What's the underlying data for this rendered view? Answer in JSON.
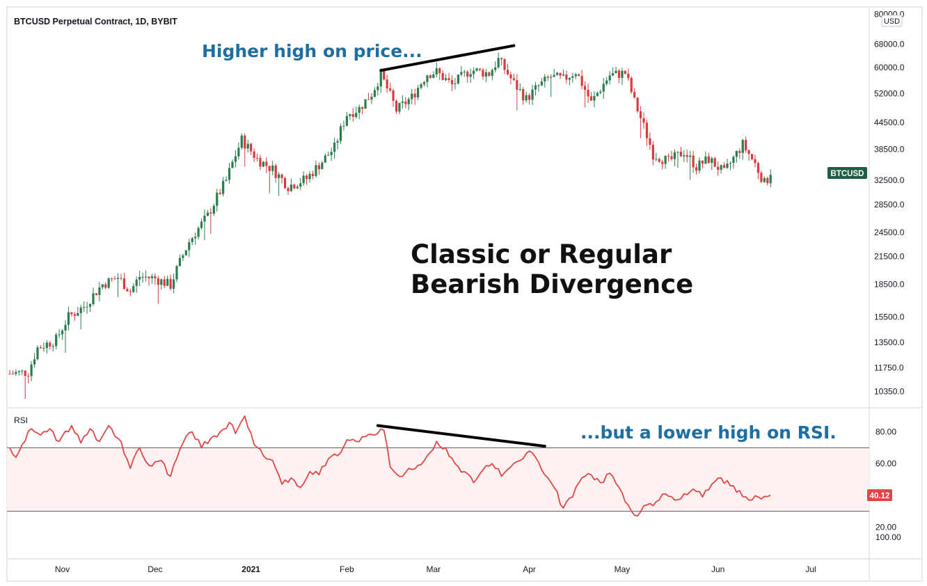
{
  "chart_data": [
    {
      "type": "candlestick",
      "title": "BTCUSD Perpetual Contract, 1D, BYBIT",
      "symbol": "BTCUSD",
      "unit": "USD",
      "scale": "log",
      "ylim": [
        9500,
        82000
      ],
      "ytick_labels": [
        "80000.0",
        "68000.0",
        "60000.0",
        "52000.0",
        "44500.0",
        "38500.0",
        "32500.0",
        "28500.0",
        "24500.0",
        "21500.0",
        "18500.0",
        "15500.0",
        "13500.0",
        "11750.0",
        "10350.0"
      ],
      "ytick_values": [
        80000,
        68000,
        60000,
        52000,
        44500,
        38500,
        32500,
        28500,
        24500,
        21500,
        18500,
        15500,
        13500,
        11750,
        10350
      ],
      "x_labels": [
        "Nov",
        "Dec",
        "2021",
        "Feb",
        "Mar",
        "Apr",
        "May",
        "Jun",
        "Jul"
      ],
      "x_label_days": [
        5,
        35,
        66,
        97,
        125,
        156,
        186,
        217,
        247
      ],
      "price_path": [
        {
          "day": -12,
          "close": 11400
        },
        {
          "day": -6,
          "close": 11500
        },
        {
          "day": -3,
          "close": 13100
        },
        {
          "day": 3,
          "close": 13700
        },
        {
          "day": 7,
          "close": 15500
        },
        {
          "day": 12,
          "close": 16400
        },
        {
          "day": 18,
          "close": 18500
        },
        {
          "day": 23,
          "close": 19200
        },
        {
          "day": 27,
          "close": 17800
        },
        {
          "day": 30,
          "close": 19300
        },
        {
          "day": 35,
          "close": 19100
        },
        {
          "day": 40,
          "close": 18400
        },
        {
          "day": 46,
          "close": 23300
        },
        {
          "day": 52,
          "close": 26800
        },
        {
          "day": 58,
          "close": 32500
        },
        {
          "day": 63,
          "close": 40500
        },
        {
          "day": 68,
          "close": 36500
        },
        {
          "day": 73,
          "close": 34500
        },
        {
          "day": 78,
          "close": 31500
        },
        {
          "day": 84,
          "close": 32800
        },
        {
          "day": 89,
          "close": 36000
        },
        {
          "day": 93,
          "close": 38800
        },
        {
          "day": 97,
          "close": 46500
        },
        {
          "day": 101,
          "close": 48000
        },
        {
          "day": 105,
          "close": 52000
        },
        {
          "day": 108,
          "close": 57500
        },
        {
          "day": 113,
          "close": 47500
        },
        {
          "day": 118,
          "close": 51000
        },
        {
          "day": 123,
          "close": 58000
        },
        {
          "day": 126,
          "close": 58500
        },
        {
          "day": 131,
          "close": 54500
        },
        {
          "day": 137,
          "close": 59200
        },
        {
          "day": 143,
          "close": 58000
        },
        {
          "day": 146,
          "close": 62500
        },
        {
          "day": 151,
          "close": 55000
        },
        {
          "day": 155,
          "close": 50500
        },
        {
          "day": 159,
          "close": 54200
        },
        {
          "day": 163,
          "close": 57000
        },
        {
          "day": 167,
          "close": 56200
        },
        {
          "day": 171,
          "close": 58700
        },
        {
          "day": 176,
          "close": 49500
        },
        {
          "day": 182,
          "close": 57500
        },
        {
          "day": 187,
          "close": 58200
        },
        {
          "day": 190,
          "close": 49800
        },
        {
          "day": 193,
          "close": 43500
        },
        {
          "day": 196,
          "close": 37500
        },
        {
          "day": 201,
          "close": 36000
        },
        {
          "day": 206,
          "close": 38000
        },
        {
          "day": 210,
          "close": 35000
        },
        {
          "day": 214,
          "close": 36500
        },
        {
          "day": 219,
          "close": 33800
        },
        {
          "day": 225,
          "close": 39500
        },
        {
          "day": 229,
          "close": 35500
        },
        {
          "day": 232,
          "close": 32000
        },
        {
          "day": 234,
          "close": 33500
        }
      ]
    },
    {
      "type": "line",
      "title": "RSI",
      "ylim": [
        0,
        100
      ],
      "ytick_labels": [
        "80.00",
        "60.00",
        "20.00",
        "100.00"
      ],
      "ytick_values": [
        80,
        60,
        20,
        100
      ],
      "bands": [
        70,
        30
      ],
      "last_value_label": "40.12",
      "last_value": 40.12,
      "rsi_path": [
        {
          "day": -12,
          "value": 70
        },
        {
          "day": -10,
          "value": 64
        },
        {
          "day": -8,
          "value": 72
        },
        {
          "day": -5,
          "value": 82
        },
        {
          "day": -2,
          "value": 78
        },
        {
          "day": 1,
          "value": 82
        },
        {
          "day": 4,
          "value": 74
        },
        {
          "day": 8,
          "value": 84
        },
        {
          "day": 11,
          "value": 73
        },
        {
          "day": 14,
          "value": 82
        },
        {
          "day": 17,
          "value": 74
        },
        {
          "day": 20,
          "value": 84
        },
        {
          "day": 24,
          "value": 74
        },
        {
          "day": 27,
          "value": 57
        },
        {
          "day": 30,
          "value": 70
        },
        {
          "day": 33,
          "value": 59
        },
        {
          "day": 37,
          "value": 62
        },
        {
          "day": 40,
          "value": 52
        },
        {
          "day": 44,
          "value": 73
        },
        {
          "day": 47,
          "value": 80
        },
        {
          "day": 50,
          "value": 70
        },
        {
          "day": 53,
          "value": 76
        },
        {
          "day": 56,
          "value": 80
        },
        {
          "day": 59,
          "value": 86
        },
        {
          "day": 61,
          "value": 79
        },
        {
          "day": 64,
          "value": 90
        },
        {
          "day": 67,
          "value": 72
        },
        {
          "day": 70,
          "value": 65
        },
        {
          "day": 73,
          "value": 62
        },
        {
          "day": 76,
          "value": 47
        },
        {
          "day": 79,
          "value": 51
        },
        {
          "day": 82,
          "value": 45
        },
        {
          "day": 85,
          "value": 55
        },
        {
          "day": 88,
          "value": 53
        },
        {
          "day": 91,
          "value": 63
        },
        {
          "day": 94,
          "value": 65
        },
        {
          "day": 97,
          "value": 75
        },
        {
          "day": 100,
          "value": 74
        },
        {
          "day": 103,
          "value": 77
        },
        {
          "day": 106,
          "value": 78
        },
        {
          "day": 109,
          "value": 81
        },
        {
          "day": 111,
          "value": 58
        },
        {
          "day": 114,
          "value": 52
        },
        {
          "day": 117,
          "value": 57
        },
        {
          "day": 120,
          "value": 59
        },
        {
          "day": 123,
          "value": 65
        },
        {
          "day": 126,
          "value": 74
        },
        {
          "day": 129,
          "value": 70
        },
        {
          "day": 132,
          "value": 60
        },
        {
          "day": 135,
          "value": 55
        },
        {
          "day": 138,
          "value": 48
        },
        {
          "day": 141,
          "value": 56
        },
        {
          "day": 144,
          "value": 60
        },
        {
          "day": 147,
          "value": 52
        },
        {
          "day": 150,
          "value": 58
        },
        {
          "day": 153,
          "value": 62
        },
        {
          "day": 156,
          "value": 68
        },
        {
          "day": 158,
          "value": 64
        },
        {
          "day": 161,
          "value": 53
        },
        {
          "day": 164,
          "value": 45
        },
        {
          "day": 167,
          "value": 32
        },
        {
          "day": 170,
          "value": 39
        },
        {
          "day": 173,
          "value": 51
        },
        {
          "day": 176,
          "value": 53
        },
        {
          "day": 179,
          "value": 48
        },
        {
          "day": 182,
          "value": 54
        },
        {
          "day": 185,
          "value": 45
        },
        {
          "day": 188,
          "value": 34
        },
        {
          "day": 191,
          "value": 27
        },
        {
          "day": 194,
          "value": 34
        },
        {
          "day": 197,
          "value": 36
        },
        {
          "day": 200,
          "value": 41
        },
        {
          "day": 203,
          "value": 37
        },
        {
          "day": 206,
          "value": 41
        },
        {
          "day": 209,
          "value": 44
        },
        {
          "day": 212,
          "value": 39
        },
        {
          "day": 215,
          "value": 47
        },
        {
          "day": 218,
          "value": 51
        },
        {
          "day": 221,
          "value": 46
        },
        {
          "day": 224,
          "value": 43
        },
        {
          "day": 227,
          "value": 37
        },
        {
          "day": 230,
          "value": 39
        },
        {
          "day": 234,
          "value": 40.12
        }
      ]
    }
  ],
  "annotations": {
    "price_note": "Higher high on price...",
    "rsi_note": "...but a lower high on RSI.",
    "headline_line1": "Classic or Regular",
    "headline_line2": "Bearish Divergence"
  },
  "trendlines": {
    "price": {
      "start_day": 108,
      "start_value": 59000,
      "end_day": 151,
      "end_value": 67500
    },
    "rsi": {
      "start_day": 107,
      "start_value": 84,
      "end_day": 161,
      "end_value": 71
    }
  },
  "colors": {
    "up": "#2b7c4e",
    "down": "#d83a3e",
    "rsi_line": "#e04646",
    "rsi_band": "#fdf1f1",
    "badge_symbol": "#1e5e45",
    "badge_rsi": "#e04646",
    "annotation_blue": "#1d6fa3"
  }
}
